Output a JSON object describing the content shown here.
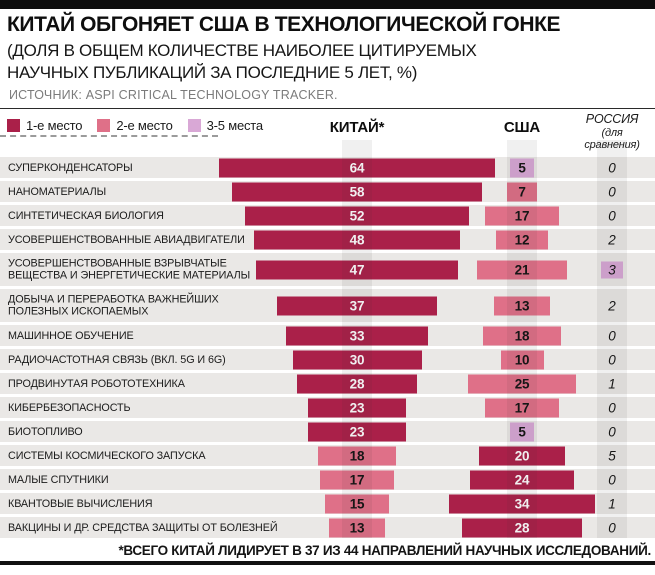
{
  "header": {
    "title": "КИТАЙ ОБГОНЯЕТ США В ТЕХНОЛОГИЧЕСКОЙ ГОНКЕ",
    "subtitle_line1": "(ДОЛЯ В ОБЩЕМ КОЛИЧЕСТВЕ НАИБОЛЕЕ ЦИТИРУЕМЫХ",
    "subtitle_line2": "НАУЧНЫХ ПУБЛИКАЦИЙ ЗА ПОСЛЕДНИЕ 5 ЛЕТ, %)",
    "source": "ИСТОЧНИК: ASPI CRITICAL TECHNOLOGY TRACKER."
  },
  "legend": {
    "items": [
      {
        "label": "1-е место",
        "rank": 1
      },
      {
        "label": "2-е место",
        "rank": 2
      },
      {
        "label": "3-5 места",
        "rank": 3
      }
    ]
  },
  "columns": {
    "china": "КИТАЙ*",
    "usa": "США",
    "russia_line1": "РОССИЯ",
    "russia_line2": "(для сравнения)"
  },
  "colors": {
    "rank1": "#AA2049",
    "rank2": "#DF7088",
    "rank3": "#D9A8D6",
    "row_band": "#EAE8E6",
    "bar_text_on_dark": "#FFFFFF",
    "bar_text_on_light": "#141414"
  },
  "footnote": "*ВСЕГО КИТАЙ ЛИДИРУЕТ В 37 ИЗ 44 НАПРАВЛЕНИЙ НАУЧНЫХ ИССЛЕДОВАНИЙ.",
  "chart_data": {
    "type": "bar",
    "orientation": "horizontal-centered",
    "unit": "%",
    "title": "КИТАЙ ОБГОНЯЕТ США В ТЕХНОЛОГИЧЕСКОЙ ГОНКЕ (доля в общем количестве наиболее цитируемых научных публикаций за последние 5 лет, %)",
    "legend_position": "top-left",
    "series_names": [
      "КИТАЙ",
      "США",
      "РОССИЯ (для сравнения)"
    ],
    "rank_meaning": {
      "1": "1-е место",
      "2": "2-е место",
      "3": "3-5 места"
    },
    "rows": [
      {
        "label_lines": [
          "СУПЕРКОНДЕНСАТОРЫ"
        ],
        "china": 64,
        "china_rank": 1,
        "usa": 5,
        "usa_rank": 3,
        "russia": 0,
        "russia_rank": null
      },
      {
        "label_lines": [
          "НАНОМАТЕРИАЛЫ"
        ],
        "china": 58,
        "china_rank": 1,
        "usa": 7,
        "usa_rank": 2,
        "russia": 0,
        "russia_rank": null
      },
      {
        "label_lines": [
          "СИНТЕТИЧЕСКАЯ БИОЛОГИЯ"
        ],
        "china": 52,
        "china_rank": 1,
        "usa": 17,
        "usa_rank": 2,
        "russia": 0,
        "russia_rank": null
      },
      {
        "label_lines": [
          "УСОВЕРШЕНСТВОВАННЫЕ АВИАДВИГАТЕЛИ"
        ],
        "china": 48,
        "china_rank": 1,
        "usa": 12,
        "usa_rank": 2,
        "russia": 2,
        "russia_rank": null
      },
      {
        "label_lines": [
          "УСОВЕРШЕНСТВОВАННЫЕ ВЗРЫВЧАТЫЕ",
          "ВЕЩЕСТВА И ЭНЕРГЕТИЧЕСКИЕ МАТЕРИАЛЫ"
        ],
        "china": 47,
        "china_rank": 1,
        "usa": 21,
        "usa_rank": 2,
        "russia": 3,
        "russia_rank": 3
      },
      {
        "label_lines": [
          "ДОБЫЧА И ПЕРЕРАБОТКА ВАЖНЕЙШИХ",
          "ПОЛЕЗНЫХ ИСКОПАЕМЫХ"
        ],
        "china": 37,
        "china_rank": 1,
        "usa": 13,
        "usa_rank": 2,
        "russia": 2,
        "russia_rank": null
      },
      {
        "label_lines": [
          "МАШИННОЕ ОБУЧЕНИЕ"
        ],
        "china": 33,
        "china_rank": 1,
        "usa": 18,
        "usa_rank": 2,
        "russia": 0,
        "russia_rank": null
      },
      {
        "label_lines": [
          "РАДИОЧАСТОТНАЯ СВЯЗЬ (ВКЛ. 5G И 6G)"
        ],
        "china": 30,
        "china_rank": 1,
        "usa": 10,
        "usa_rank": 2,
        "russia": 0,
        "russia_rank": null
      },
      {
        "label_lines": [
          "ПРОДВИНУТАЯ РОБОТОТЕХНИКА"
        ],
        "china": 28,
        "china_rank": 1,
        "usa": 25,
        "usa_rank": 2,
        "russia": 1,
        "russia_rank": null
      },
      {
        "label_lines": [
          "КИБЕРБЕЗОПАСНОСТЬ"
        ],
        "china": 23,
        "china_rank": 1,
        "usa": 17,
        "usa_rank": 2,
        "russia": 0,
        "russia_rank": null
      },
      {
        "label_lines": [
          "БИОТОПЛИВО"
        ],
        "china": 23,
        "china_rank": 1,
        "usa": 5,
        "usa_rank": 3,
        "russia": 0,
        "russia_rank": null
      },
      {
        "label_lines": [
          "СИСТЕМЫ КОСМИЧЕСКОГО ЗАПУСКА"
        ],
        "china": 18,
        "china_rank": 2,
        "usa": 20,
        "usa_rank": 1,
        "russia": 5,
        "russia_rank": null
      },
      {
        "label_lines": [
          "МАЛЫЕ СПУТНИКИ"
        ],
        "china": 17,
        "china_rank": 2,
        "usa": 24,
        "usa_rank": 1,
        "russia": 0,
        "russia_rank": null
      },
      {
        "label_lines": [
          "КВАНТОВЫЕ ВЫЧИСЛЕНИЯ"
        ],
        "china": 15,
        "china_rank": 2,
        "usa": 34,
        "usa_rank": 1,
        "russia": 1,
        "russia_rank": null
      },
      {
        "label_lines": [
          "ВАКЦИНЫ И ДР. СРЕДСТВА ЗАЩИТЫ ОТ БОЛЕЗНЕЙ"
        ],
        "china": 13,
        "china_rank": 2,
        "usa": 28,
        "usa_rank": 1,
        "russia": 0,
        "russia_rank": null
      }
    ]
  }
}
